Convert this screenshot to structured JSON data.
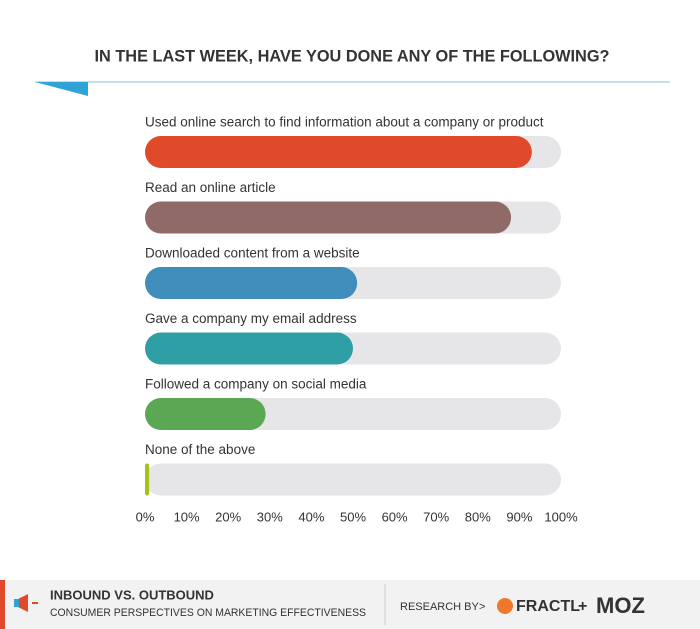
{
  "chart_data": {
    "type": "hbar",
    "title": "IN THE LAST WEEK, HAVE YOU DONE ANY OF THE FOLLOWING?",
    "categories": [
      "Used online search to find information about a company or product",
      "Read an online article",
      "Downloaded content from a website",
      "Gave a company my email address",
      "Followed a company on social media",
      "None of the above"
    ],
    "values": [
      93,
      88,
      51,
      50,
      29,
      1
    ],
    "colors": [
      "#e0492a",
      "#8f6a66",
      "#3f8dba",
      "#2f9fa6",
      "#5aa853",
      "#a5c21c"
    ],
    "track_color": "#e6e6e8",
    "xlim": [
      0,
      100
    ],
    "xticks": [
      {
        "value": 0,
        "label": "0%"
      },
      {
        "value": 10,
        "label": "10%"
      },
      {
        "value": 20,
        "label": "20%"
      },
      {
        "value": 30,
        "label": "30%"
      },
      {
        "value": 40,
        "label": "40%"
      },
      {
        "value": 50,
        "label": "50%"
      },
      {
        "value": 60,
        "label": "60%"
      },
      {
        "value": 70,
        "label": "70%"
      },
      {
        "value": 80,
        "label": "80%"
      },
      {
        "value": 90,
        "label": "90%"
      },
      {
        "value": 100,
        "label": "100%"
      }
    ]
  },
  "footer": {
    "title": "INBOUND VS. OUTBOUND",
    "subtitle": "CONSUMER PERSPECTIVES ON MARKETING EFFECTIVENESS",
    "research_by": "RESEARCH BY",
    "partner1": "FRACTL",
    "partner2": "MOZ"
  }
}
